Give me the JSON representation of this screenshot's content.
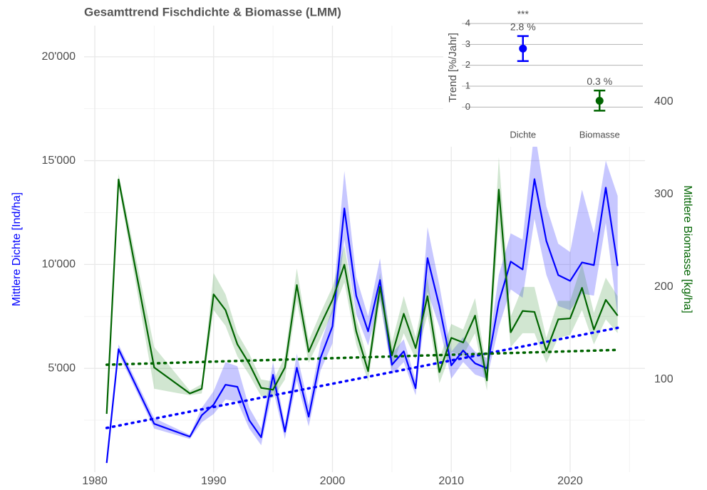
{
  "chart_data": [
    {
      "type": "line",
      "title": "Gesamttrend Fischdichte & Biomasse  (LMM)",
      "ylabel": "Mittlere Dichte [Ind/ha]",
      "y2label": "Mittlere Biomasse [kg/ha]",
      "x": [
        1981,
        1982,
        1985,
        1988,
        1989,
        1990,
        1991,
        1992,
        1993,
        1994,
        1995,
        1996,
        1997,
        1998,
        1999,
        2000,
        2001,
        2002,
        2003,
        2004,
        2005,
        2006,
        2007,
        2008,
        2009,
        2010,
        2011,
        2012,
        2013,
        2014,
        2015,
        2016,
        2017,
        2018,
        2019,
        2020,
        2021,
        2022,
        2023,
        2024
      ],
      "series": [
        {
          "color": "#0000ff",
          "band_color": "#0000ff",
          "values": [
            445,
            5925,
            2330,
            1710,
            2740,
            3250,
            4210,
            4110,
            2500,
            1680,
            4690,
            1950,
            5030,
            2670,
            5510,
            7020,
            12700,
            8490,
            6780,
            9250,
            5170,
            5820,
            4040,
            10310,
            7980,
            5140,
            5860,
            5240,
            5000,
            8190,
            10140,
            9760,
            14110,
            11130,
            9490,
            9210,
            10100,
            9970,
            13700,
            9930
          ],
          "lower": [
            300,
            5700,
            2100,
            1600,
            2400,
            2800,
            3500,
            3400,
            2100,
            1300,
            4000,
            1600,
            4400,
            2200,
            4900,
            6200,
            11200,
            7600,
            6100,
            8300,
            4700,
            5300,
            3700,
            8700,
            7000,
            4500,
            5300,
            4700,
            4500,
            7000,
            8800,
            8400,
            12200,
            9500,
            8000,
            7800,
            8600,
            8500,
            12000,
            7500
          ],
          "upper": [
            600,
            6150,
            2600,
            1800,
            3100,
            3900,
            5300,
            5100,
            3100,
            2100,
            5300,
            2300,
            5700,
            3200,
            6200,
            7900,
            14500,
            9400,
            7500,
            10300,
            5700,
            6400,
            4400,
            11800,
            9000,
            5800,
            6500,
            5800,
            5500,
            9500,
            11500,
            11200,
            16500,
            12800,
            11000,
            10600,
            13600,
            11500,
            15000,
            13300
          ],
          "trend_x": [
            1981,
            2024
          ],
          "trend": [
            2130,
            6950
          ]
        },
        {
          "color": "#006400",
          "band_color": "#2e8b2e",
          "axis": "y2",
          "values": [
            63,
            316,
            113,
            85,
            90,
            192,
            175,
            138,
            117,
            91,
            89,
            113,
            202,
            130,
            159,
            186,
            224,
            152,
            109,
            200,
            126,
            171,
            134,
            190,
            108,
            145,
            140,
            169,
            99,
            305,
            151,
            174,
            173,
            131,
            165,
            166,
            199,
            154,
            186,
            169
          ],
          "lower": [
            60,
            310,
            90,
            83,
            85,
            175,
            158,
            125,
            105,
            82,
            80,
            100,
            185,
            118,
            145,
            172,
            205,
            138,
            98,
            185,
            112,
            150,
            122,
            170,
            96,
            130,
            126,
            150,
            88,
            270,
            135,
            150,
            150,
            118,
            145,
            148,
            175,
            138,
            165,
            150
          ],
          "upper": [
            66,
            322,
            135,
            88,
            95,
            215,
            192,
            150,
            128,
            100,
            98,
            125,
            220,
            142,
            172,
            200,
            245,
            166,
            120,
            215,
            140,
            190,
            146,
            210,
            122,
            160,
            154,
            188,
            110,
            340,
            168,
            200,
            200,
            145,
            185,
            185,
            225,
            172,
            210,
            190
          ],
          "trend_x": [
            1981,
            2024
          ],
          "trend": [
            116,
            132
          ]
        }
      ],
      "xlim": [
        1979.1,
        2026.3
      ],
      "xticks": [
        1980,
        1990,
        2000,
        2010,
        2020
      ],
      "xminor": [
        1985,
        1995,
        2005,
        2015,
        2025
      ],
      "ylim": [
        0,
        21500
      ],
      "yticks": [
        {
          "value": 5000,
          "label": "5'000"
        },
        {
          "value": 10000,
          "label": "10'000"
        },
        {
          "value": 15000,
          "label": "15'000"
        },
        {
          "value": 20000,
          "label": "20'000"
        }
      ],
      "yminor": [
        2500,
        7500,
        12500,
        17500
      ],
      "y2lim": [
        0,
        482
      ],
      "y2ticks": [
        100,
        200,
        300,
        400
      ],
      "grid": true
    },
    {
      "type": "errorbar",
      "ylabel": "Trend [%/Jahr]",
      "categories": [
        "Dichte",
        "Biomasse"
      ],
      "values": [
        2.8,
        0.3
      ],
      "lower": [
        2.2,
        -0.17
      ],
      "upper": [
        3.4,
        0.79
      ],
      "value_labels": [
        "2.8 %",
        "0.3 %"
      ],
      "significance": [
        "***",
        null
      ],
      "colors": [
        "#0000ff",
        "#006400"
      ],
      "ylim": [
        -0.5,
        4
      ],
      "yticks": [
        0,
        1,
        2,
        3,
        4
      ],
      "grid": true
    }
  ]
}
